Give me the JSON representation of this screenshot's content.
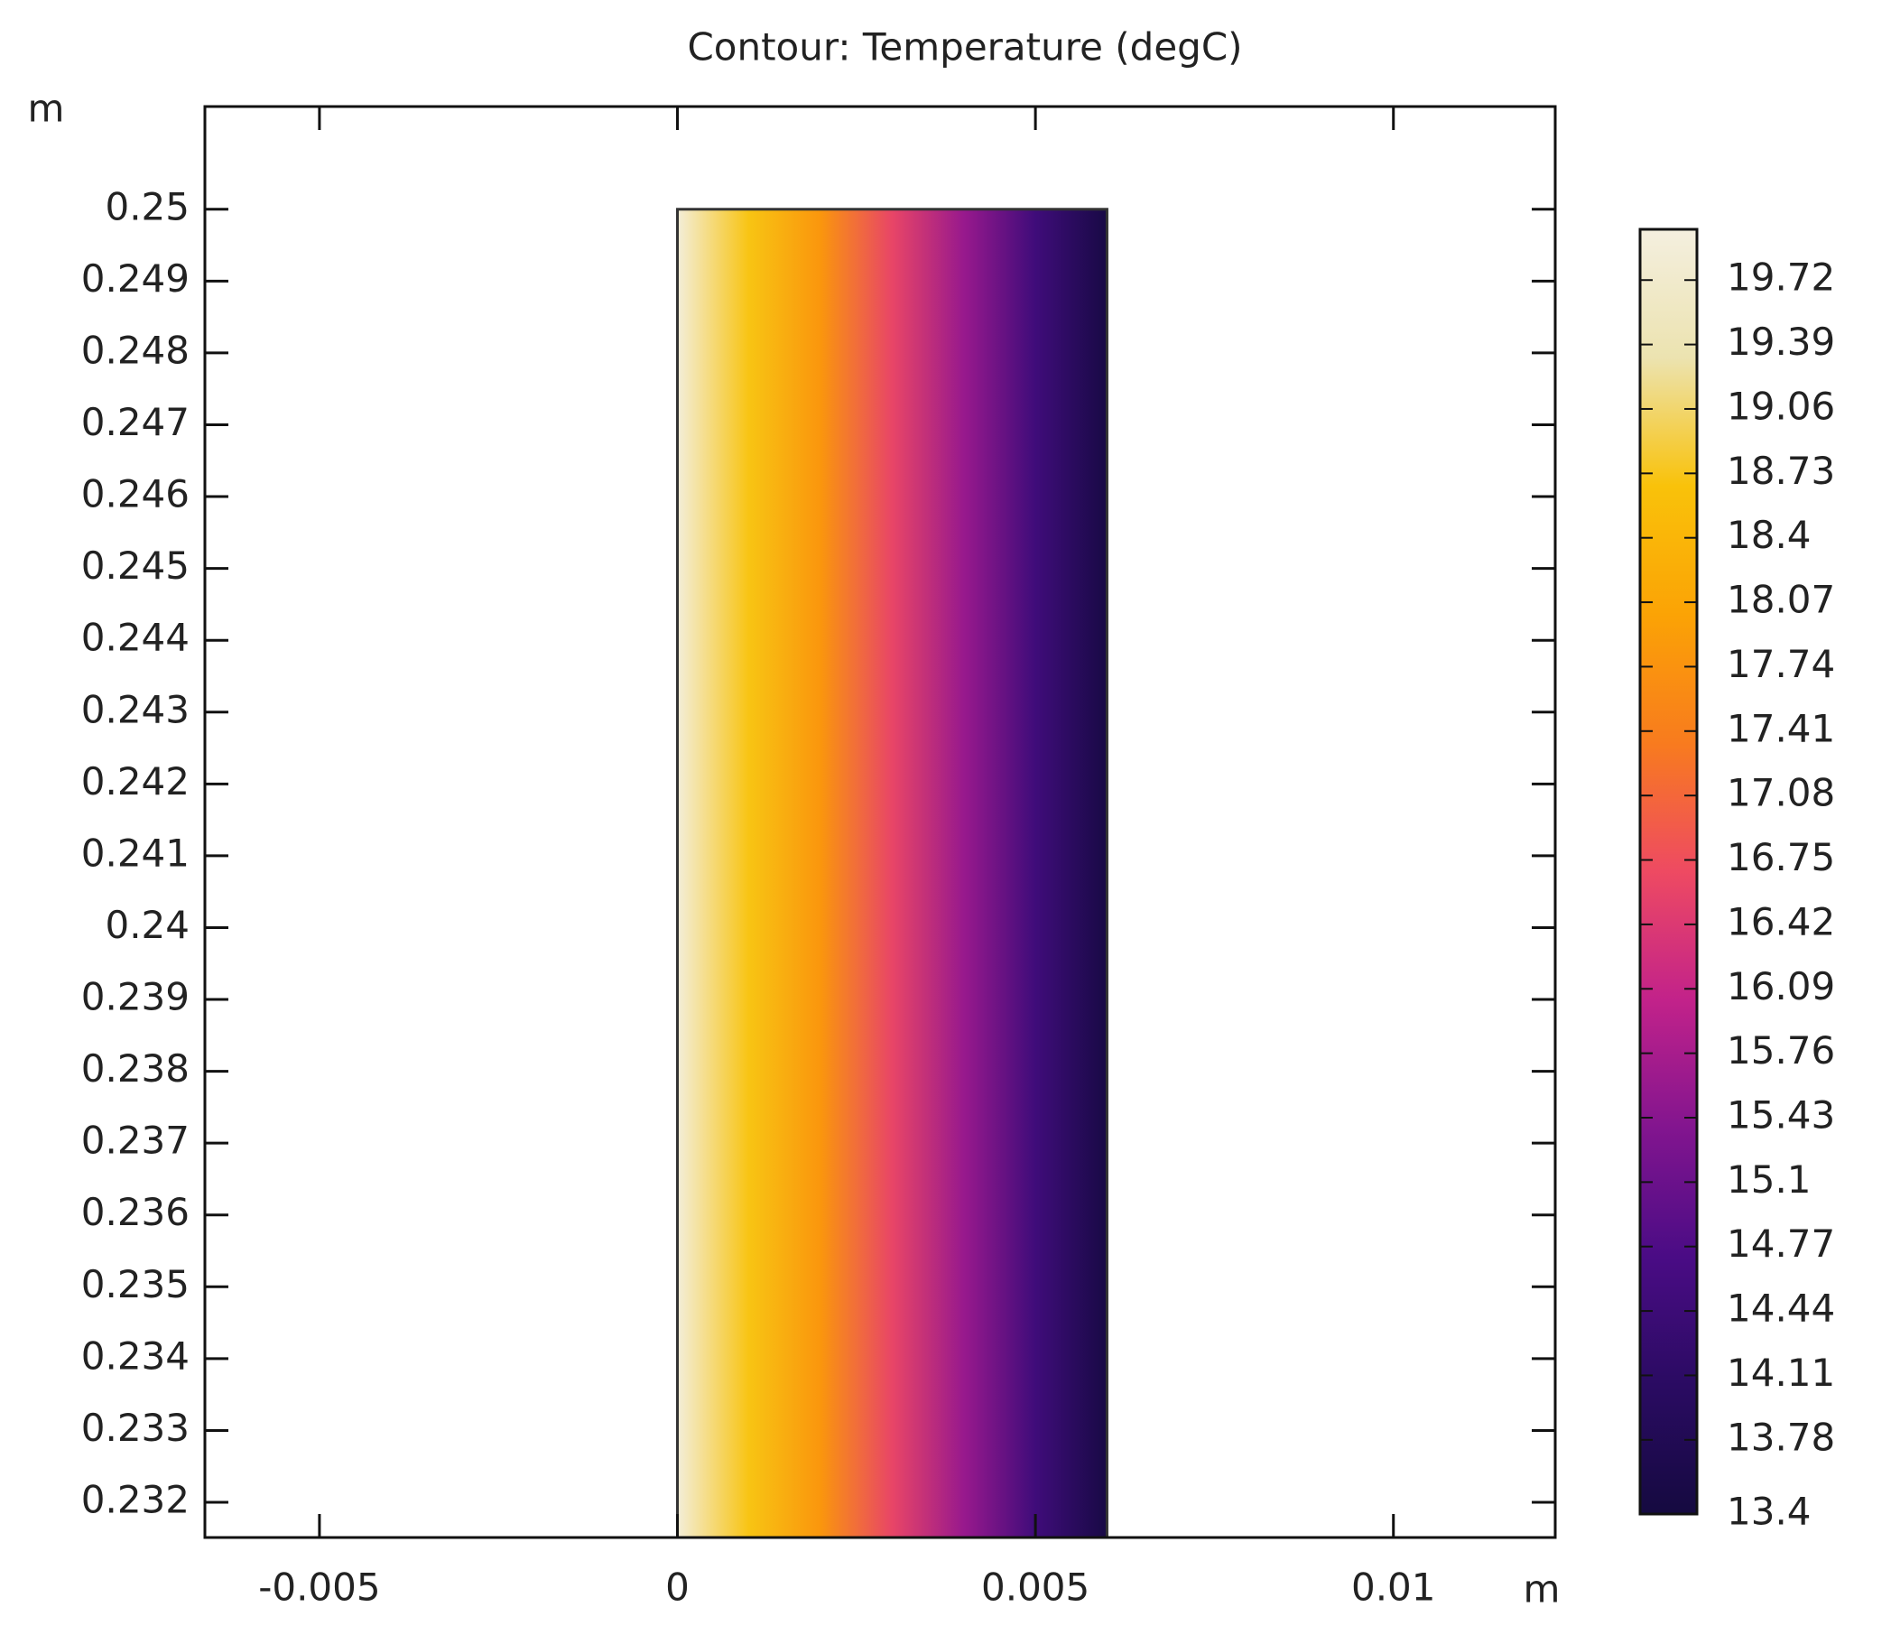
{
  "chart_data": {
    "type": "contour",
    "title": "Contour: Temperature (degC)",
    "xlabel": "m",
    "ylabel": "m",
    "xlim": [
      -0.0066,
      0.01226
    ],
    "xticks": [
      -0.005,
      0,
      0.005,
      0.01
    ],
    "ylim": [
      0.23151,
      0.25143
    ],
    "yticks": [
      0.25,
      0.249,
      0.248,
      0.247,
      0.246,
      0.245,
      0.244,
      0.243,
      0.242,
      0.241,
      0.24,
      0.239,
      0.238,
      0.237,
      0.236,
      0.235,
      0.234,
      0.233,
      0.232
    ],
    "field": {
      "x": [
        0,
        0.001,
        0.002,
        0.003,
        0.004,
        0.005,
        0.006
      ],
      "values": [
        19.9,
        18.7,
        17.8,
        16.6,
        15.6,
        14.5,
        13.5
      ],
      "y_top": 0.25
    },
    "clim": [
      13.4,
      19.98
    ],
    "cticks": [
      19.72,
      19.39,
      19.06,
      18.73,
      18.4,
      18.07,
      17.74,
      17.41,
      17.08,
      16.75,
      16.42,
      16.09,
      15.76,
      15.43,
      15.1,
      14.77,
      14.44,
      14.11,
      13.78,
      13.4
    ],
    "colormap": [
      "#150a40",
      "#2a0b62",
      "#4a0c85",
      "#82158f",
      "#c2228a",
      "#ee4a62",
      "#f87b1e",
      "#fba305",
      "#f9c20a",
      "#ece3b0",
      "#f4efdf"
    ]
  }
}
